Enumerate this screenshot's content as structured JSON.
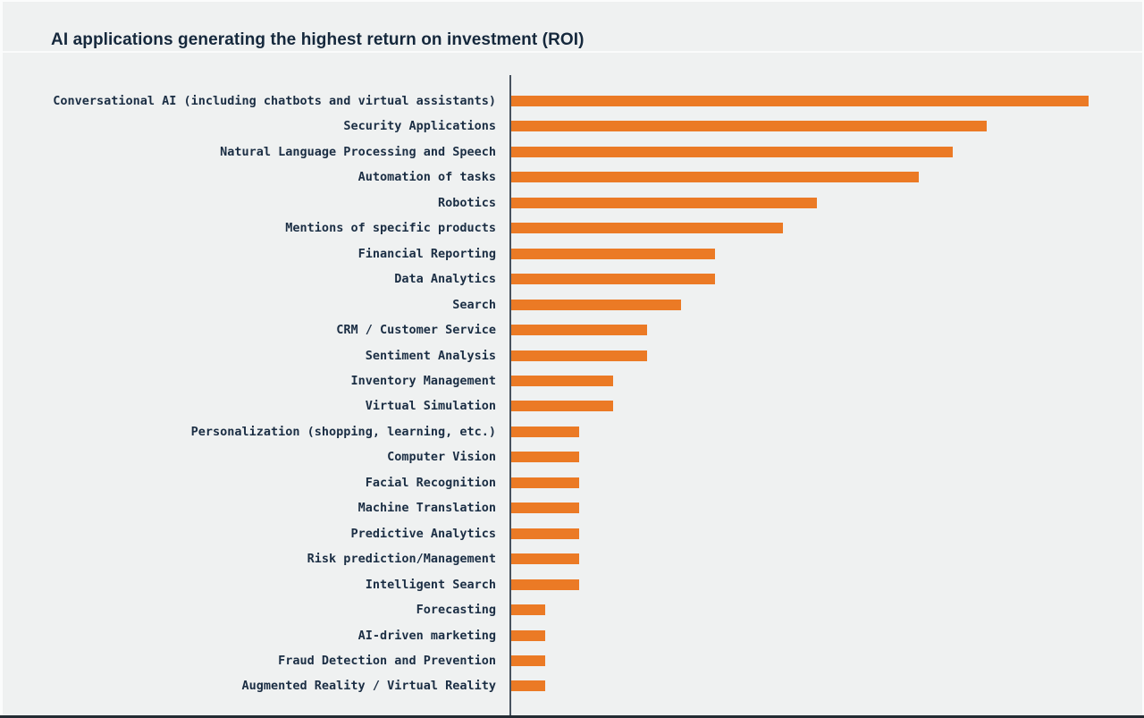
{
  "header": {
    "title": "AI applications generating the highest return on investment (ROI)"
  },
  "colors": {
    "background": "#EFF1F1",
    "bar": "#EB7A25",
    "title_text": "#15283C",
    "label_text": "#1B2E44",
    "axis_line": "#47525F"
  },
  "chart_data": {
    "type": "bar",
    "orientation": "horizontal",
    "title": "AI applications generating the highest return on investment (ROI)",
    "categories": [
      "Conversational AI (including chatbots and virtual assistants)",
      "Security Applications",
      "Natural Language Processing and Speech",
      "Automation of tasks",
      "Robotics",
      "Mentions of specific products",
      "Financial Reporting",
      "Data Analytics",
      "Search",
      "CRM / Customer Service",
      "Sentiment Analysis",
      "Inventory Management",
      "Virtual Simulation",
      "Personalization (shopping, learning, etc.)",
      "Computer Vision",
      "Facial Recognition",
      "Machine Translation",
      "Predictive Analytics",
      "Risk prediction/Management",
      "Intelligent Search",
      "Forecasting",
      "AI-driven marketing",
      "Fraud Detection and Prevention",
      "Augmented Reality / Virtual Reality"
    ],
    "values": [
      17,
      14,
      13,
      12,
      9,
      8,
      6,
      6,
      5,
      4,
      4,
      3,
      3,
      2,
      2,
      2,
      2,
      2,
      2,
      2,
      1,
      1,
      1,
      1
    ],
    "xlabel": "",
    "ylabel": "",
    "xlim": [
      0,
      18
    ],
    "grid": false,
    "legend": false,
    "axis_tick_labels_visible": false,
    "notes": "No numeric axis or data labels are shown; values are estimated relative units read from bar lengths (1 unit = shortest bar).",
    "bar_color": "#EB7A25"
  }
}
